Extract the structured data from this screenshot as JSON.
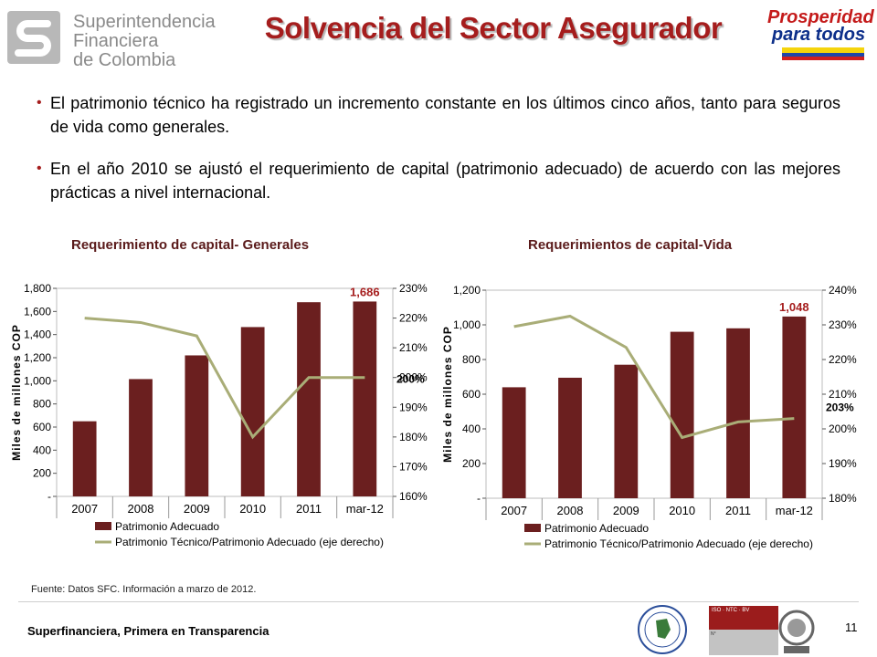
{
  "header": {
    "org_line1": "Superintendencia",
    "org_line2": "Financiera",
    "org_line3": "de Colombia",
    "title": "Solvencia del Sector Asegurador",
    "slogan_line1": "Prosperidad",
    "slogan_line2": "para todos"
  },
  "bullets": [
    "El patrimonio técnico ha registrado un incremento constante en los últimos cinco años, tanto para seguros de vida como generales.",
    "En el año 2010 se ajustó el requerimiento de capital (patrimonio adecuado) de acuerdo con  las mejores prácticas a nivel internacional."
  ],
  "chart_titles": [
    "Requerimiento de capital- Generales",
    "Requerimientos de capital-Vida"
  ],
  "source": "Fuente: Datos SFC. Información a marzo de 2012.",
  "footer": {
    "text": "Superfinanciera, Primera en Transparencia",
    "page": "11"
  },
  "colors": {
    "bar": "#6b1f1f",
    "line": "#a9ad77",
    "title": "#a51d1d"
  },
  "chart_data": [
    {
      "type": "bar",
      "title": "Requerimiento de capital- Generales",
      "categories": [
        "2007",
        "2008",
        "2009",
        "2010",
        "2011",
        "mar-12"
      ],
      "ylabel": "Miles de millones  COP",
      "ylim": [
        0,
        1800
      ],
      "yticks": [
        "-",
        "200",
        "400",
        "600",
        "800",
        "1,000",
        "1,200",
        "1,400",
        "1,600",
        "1,800"
      ],
      "y2lim": [
        1.6,
        2.3
      ],
      "y2ticks": [
        "160%",
        "170%",
        "180%",
        "190%",
        "200%",
        "210%",
        "220%",
        "230%"
      ],
      "series": [
        {
          "name": "Patrimonio Adecuado",
          "type": "bar",
          "axis": "left",
          "values": [
            650,
            1015,
            1220,
            1465,
            1680,
            1686
          ]
        },
        {
          "name": "Patrimonio Técnico/Patrimonio Adecuado (eje derecho)",
          "type": "line",
          "axis": "right",
          "values": [
            2.2,
            2.185,
            2.14,
            1.8,
            2.0,
            2.0
          ]
        }
      ],
      "annotations": {
        "bar_label": "1,686",
        "line_label": "200%"
      },
      "legend": "bottom"
    },
    {
      "type": "bar",
      "title": "Requerimientos de capital-Vida",
      "categories": [
        "2007",
        "2008",
        "2009",
        "2010",
        "2011",
        "mar-12"
      ],
      "ylabel": "Miles de millones  COP",
      "ylim": [
        0,
        1200
      ],
      "yticks": [
        "-",
        "200",
        "400",
        "600",
        "800",
        "1,000",
        "1,200"
      ],
      "y2lim": [
        1.8,
        2.4
      ],
      "y2ticks": [
        "180%",
        "190%",
        "200%",
        "210%",
        "220%",
        "230%",
        "240%"
      ],
      "series": [
        {
          "name": "Patrimonio Adecuado",
          "type": "bar",
          "axis": "left",
          "values": [
            640,
            695,
            770,
            960,
            980,
            1048
          ]
        },
        {
          "name": "Patrimonio Técnico/Patrimonio Adecuado (eje derecho)",
          "type": "line",
          "axis": "right",
          "values": [
            2.295,
            2.325,
            2.235,
            1.975,
            2.02,
            2.03
          ]
        }
      ],
      "annotations": {
        "bar_label": "1,048",
        "line_label": "203%"
      },
      "legend": "bottom"
    }
  ]
}
